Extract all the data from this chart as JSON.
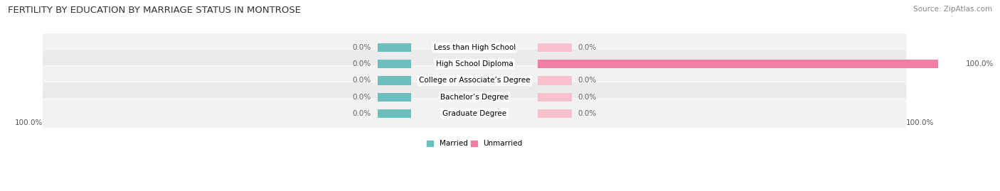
{
  "title": "FERTILITY BY EDUCATION BY MARRIAGE STATUS IN MONTROSE",
  "source": "Source: ZipAtlas.com",
  "categories": [
    "Less than High School",
    "High School Diploma",
    "College or Associate’s Degree",
    "Bachelor’s Degree",
    "Graduate Degree"
  ],
  "married_values": [
    0.0,
    0.0,
    0.0,
    0.0,
    0.0
  ],
  "unmarried_values": [
    0.0,
    100.0,
    0.0,
    0.0,
    0.0
  ],
  "married_color": "#6CBFBD",
  "unmarried_color": "#F07FA8",
  "unmarried_stub_color": "#F9C0D0",
  "row_bg_odd": "#F2F2F2",
  "row_bg_even": "#EBEBEB",
  "bottom_left_label": "100.0%",
  "bottom_right_label": "100.0%",
  "legend_married": "Married",
  "legend_unmarried": "Unmarried",
  "max_val": 100,
  "stub_val": 8,
  "figsize": [
    14.06,
    2.69
  ],
  "dpi": 100,
  "title_fontsize": 9.5,
  "label_fontsize": 7.5,
  "category_fontsize": 7.5,
  "source_fontsize": 7.5
}
